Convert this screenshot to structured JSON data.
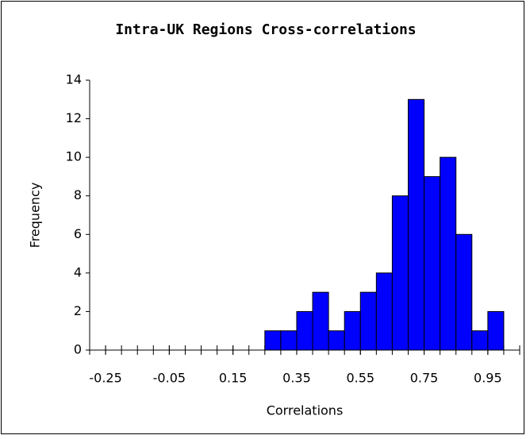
{
  "chart_data": {
    "type": "histogram",
    "title": "Intra-UK Regions Cross-correlations",
    "x_label": "Correlations",
    "y_label": "Frequency",
    "bins": [
      0.25,
      0.3,
      0.35,
      0.4,
      0.45,
      0.5,
      0.55,
      0.6,
      0.65,
      0.7,
      0.75,
      0.8,
      0.85,
      0.9,
      0.95,
      1.0
    ],
    "values": [
      1,
      1,
      2,
      3,
      1,
      2,
      3,
      4,
      8,
      13,
      9,
      10,
      6,
      1,
      2
    ],
    "color": "#0000ff",
    "xlim": [
      -0.3,
      1.05
    ],
    "xticks": [
      -0.25,
      -0.05,
      0.15,
      0.35,
      0.55,
      0.75,
      0.95
    ],
    "ylim": [
      0,
      14
    ],
    "yticks": [
      0,
      2,
      4,
      6,
      8,
      10,
      12,
      14
    ],
    "grid": false
  }
}
